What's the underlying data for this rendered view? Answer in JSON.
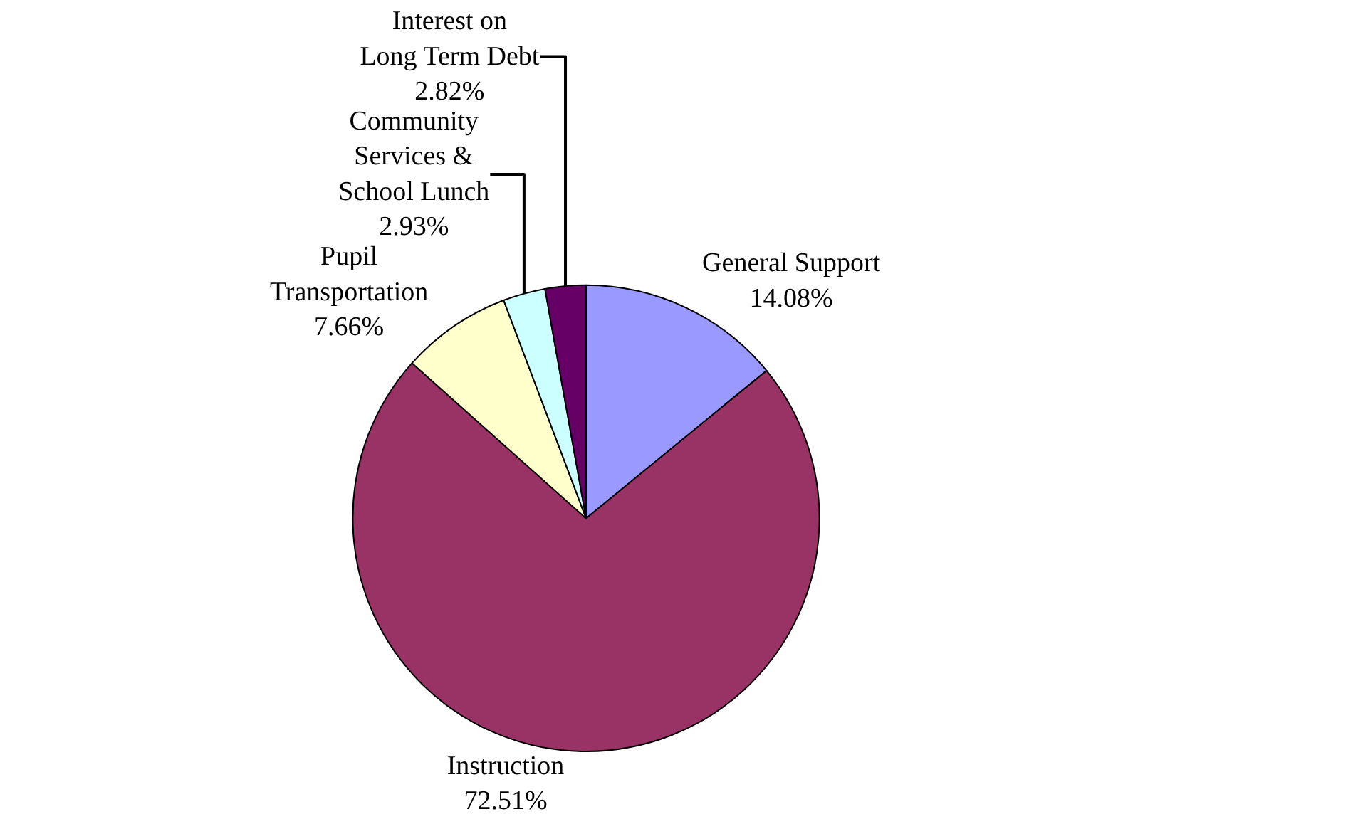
{
  "chart_data": {
    "type": "pie",
    "categories": [
      "General Support",
      "Instruction",
      "Pupil Transportation",
      "Community Services & School Lunch",
      "Interest on Long Term Debt"
    ],
    "values": [
      14.08,
      72.51,
      7.66,
      2.93,
      2.82
    ],
    "colors": [
      "#9999ff",
      "#993366",
      "#ffffcc",
      "#ccffff",
      "#660066"
    ],
    "value_labels": [
      "14.08%",
      "72.51%",
      "7.66%",
      "2.93%",
      "2.82%"
    ],
    "legend": false
  }
}
